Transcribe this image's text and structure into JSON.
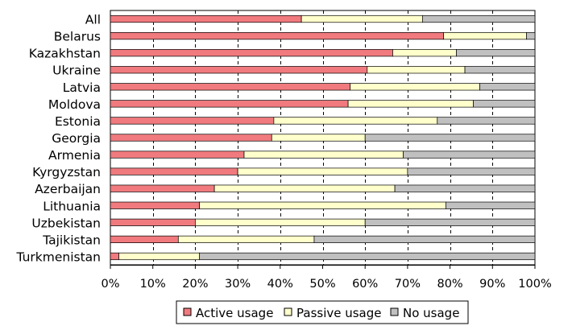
{
  "chart_data": {
    "type": "bar",
    "orientation": "horizontal",
    "stacked": "percent",
    "categories": [
      "All",
      "Belarus",
      "Kazakhstan",
      "Ukraine",
      "Latvia",
      "Moldova",
      "Estonia",
      "Georgia",
      "Armenia",
      "Kyrgyzstan",
      "Azerbaijan",
      "Lithuania",
      "Uzbekistan",
      "Tajikistan",
      "Turkmenistan"
    ],
    "series": [
      {
        "name": "Active usage",
        "color": "#f07a7e",
        "values": [
          45,
          78.5,
          66.5,
          60.5,
          56.5,
          56,
          38.5,
          38,
          31.5,
          30,
          24.5,
          21,
          20,
          16,
          2
        ]
      },
      {
        "name": "Passive usage",
        "color": "#ffffcc",
        "values": [
          28.5,
          19.5,
          15,
          23,
          30.5,
          29.5,
          38.5,
          22,
          37.5,
          40,
          42.5,
          58,
          40,
          32,
          19
        ]
      },
      {
        "name": "No usage",
        "color": "#c0c0c0",
        "values": [
          26.5,
          2,
          18.5,
          16.5,
          13,
          14.5,
          23,
          40,
          31,
          30,
          33,
          21,
          40,
          52,
          79
        ]
      }
    ],
    "x_ticks": [
      "0%",
      "10%",
      "20%",
      "30%",
      "40%",
      "50%",
      "60%",
      "70%",
      "80%",
      "90%",
      "100%"
    ],
    "xlim": [
      0,
      100
    ],
    "grid": "vertical dashed",
    "legend_position": "bottom"
  }
}
